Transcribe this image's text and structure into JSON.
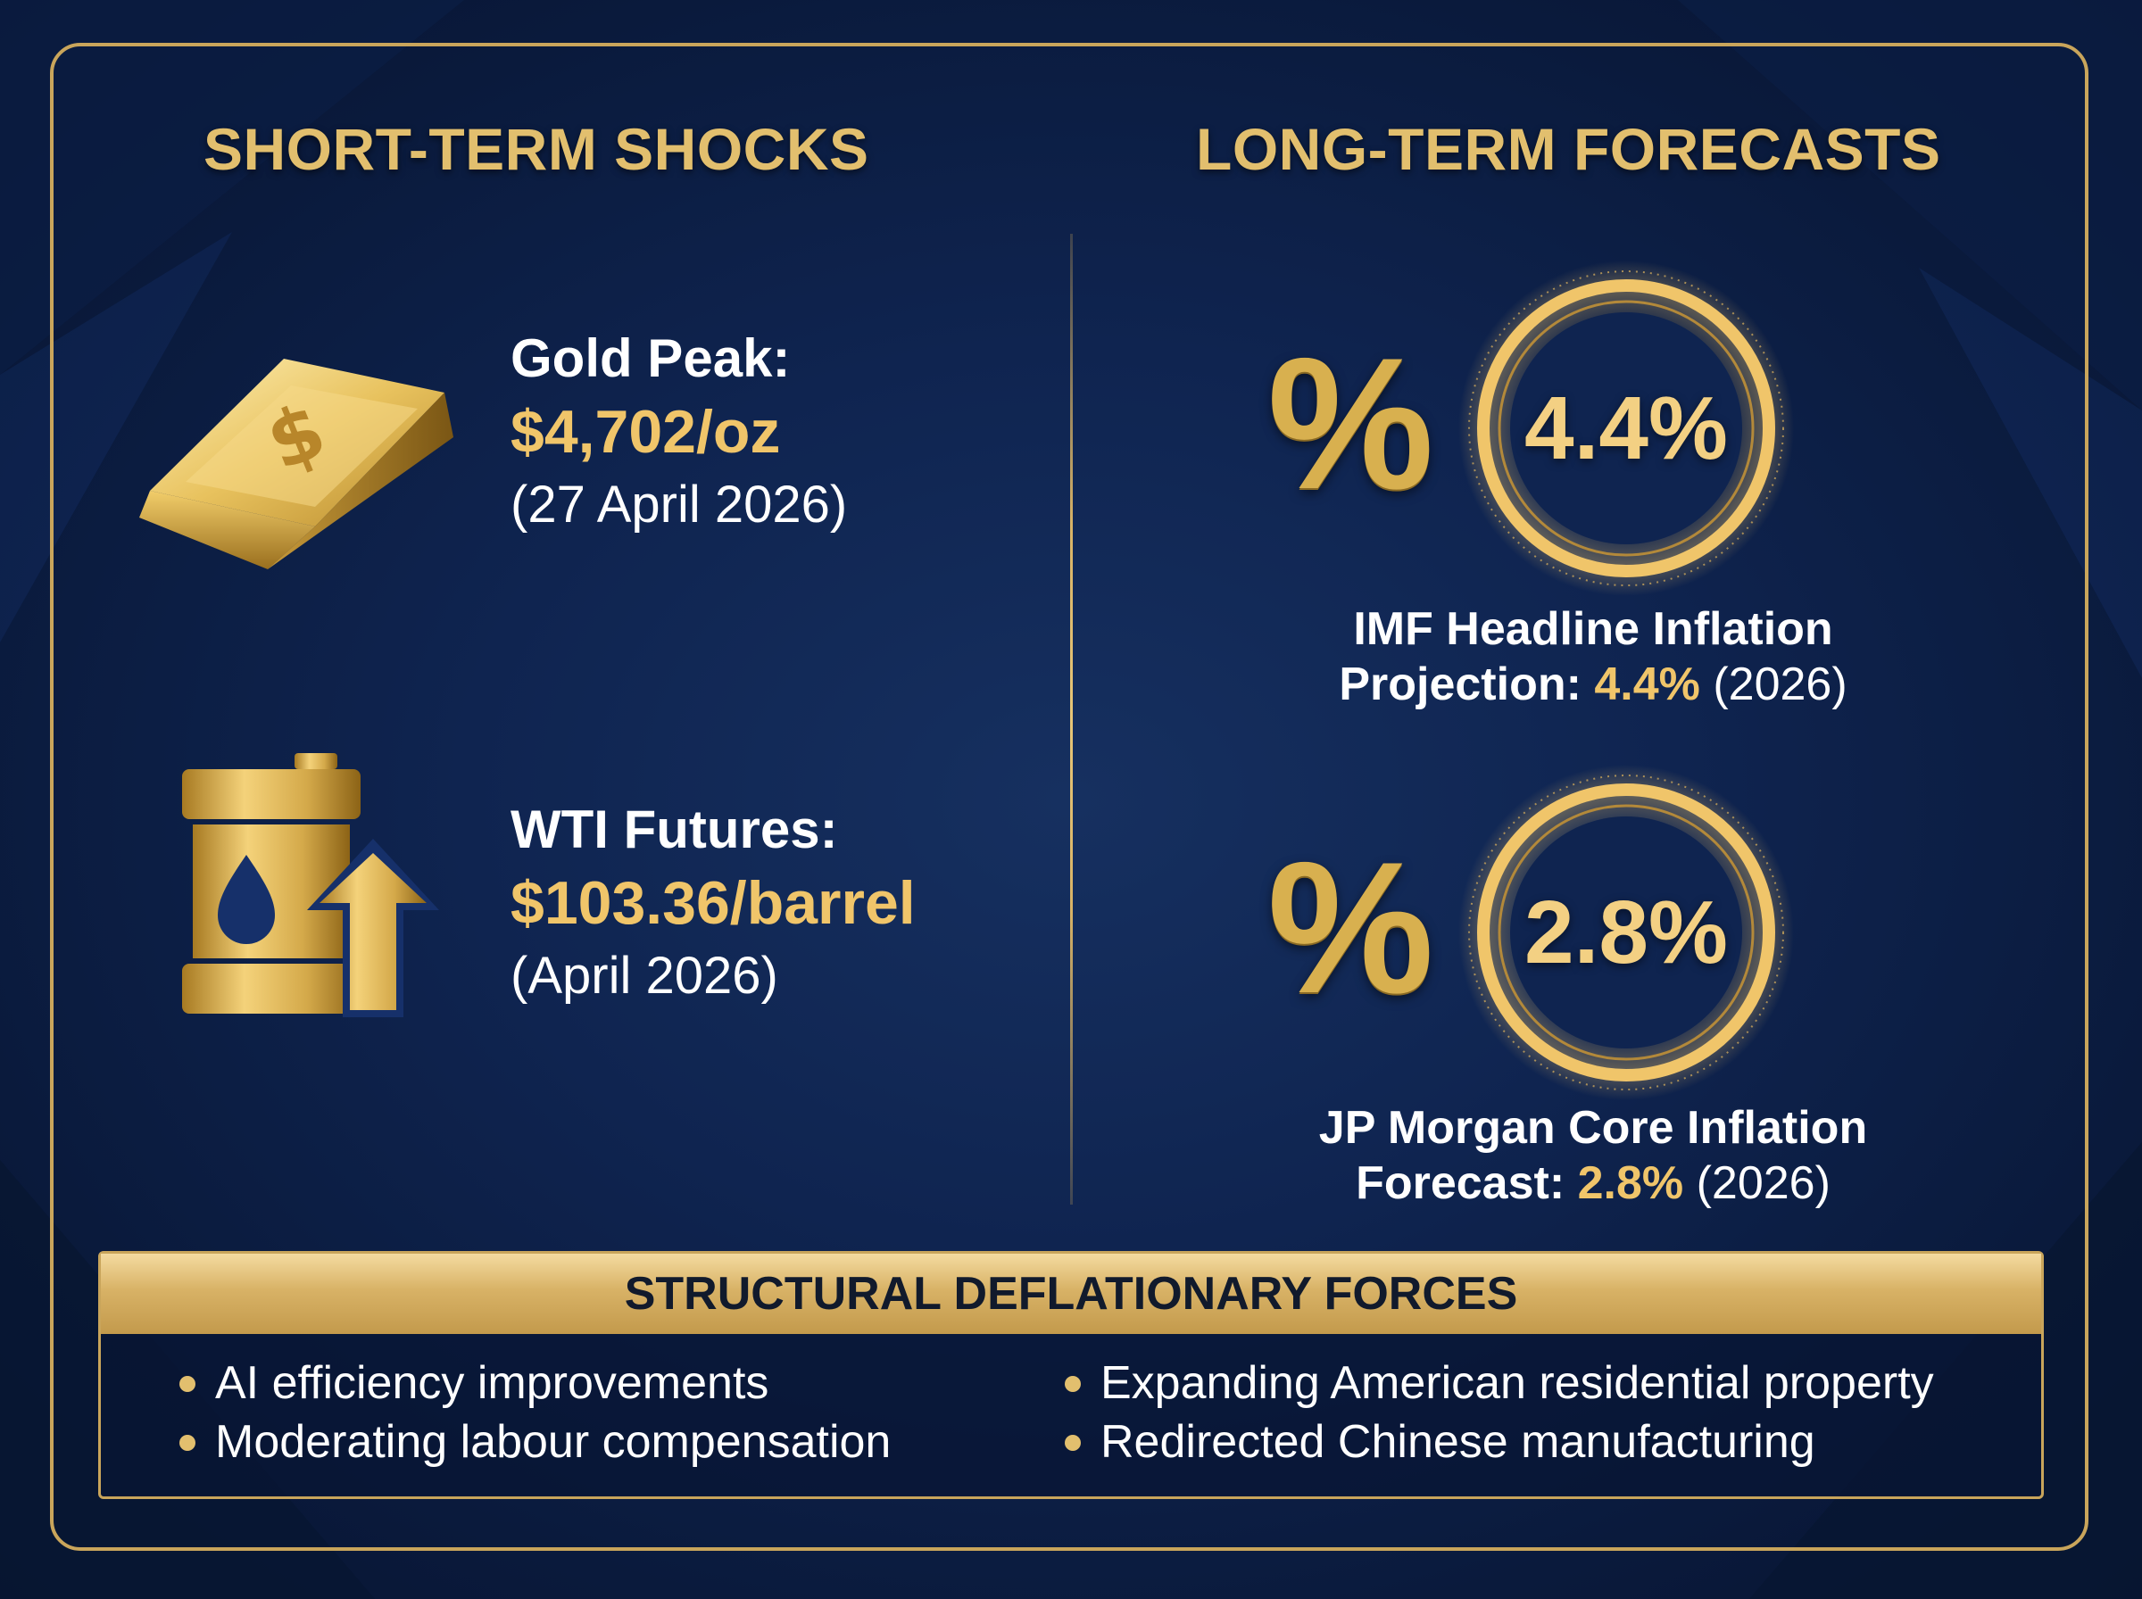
{
  "short_term": {
    "title": "SHORT-TERM SHOCKS",
    "gold": {
      "label": "Gold Peak:",
      "value": "$4,702/oz",
      "date": "(27 April 2026)",
      "icon": "gold-bar-icon"
    },
    "wti": {
      "label": "WTI Futures:",
      "value": "$103.36/barrel",
      "date": "(April 2026)",
      "icon": "oil-barrel-up-arrow-icon"
    }
  },
  "long_term": {
    "title": "LONG-TERM FORECASTS",
    "imf": {
      "ring_value": "4.4%",
      "caption_line1": "IMF Headline Inflation",
      "caption_prefix": "Projection:",
      "caption_value": "4.4%",
      "caption_year": "(2026)"
    },
    "jpm": {
      "ring_value": "2.8%",
      "caption_line1": "JP Morgan Core Inflation",
      "caption_prefix": "Forecast:",
      "caption_value": "2.8%",
      "caption_year": "(2026)"
    },
    "percent_symbol": "%"
  },
  "structural": {
    "title": "STRUCTURAL DEFLATIONARY FORCES",
    "left_items": [
      "AI efficiency improvements",
      "Moderating labour compensation"
    ],
    "right_items": [
      "Expanding American residential property",
      "Redirected Chinese manufacturing"
    ]
  },
  "colors": {
    "gold": "#e2bf6e",
    "gold_value": "#f0c56a",
    "navy": "#0f2450"
  }
}
